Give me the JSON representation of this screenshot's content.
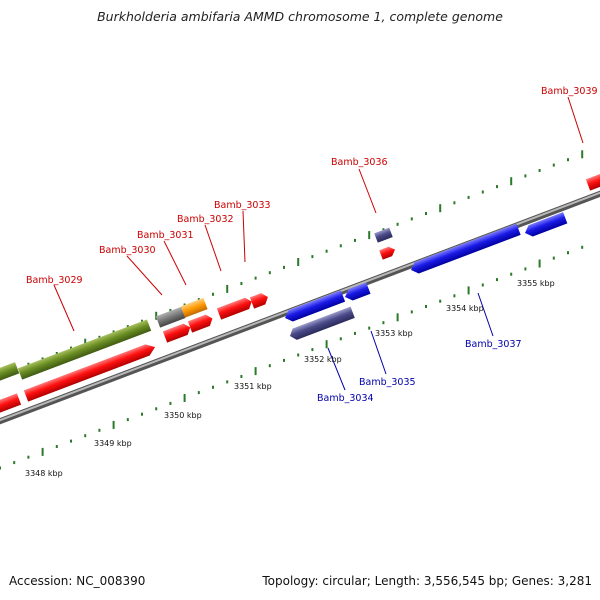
{
  "title": "Burkholderia ambifaria AMMD chromosome 1, complete genome",
  "footer": {
    "accession": "Accession: NC_008390",
    "summary": "Topology: circular; Length: 3,556,545 bp; Genes: 3,281"
  },
  "colors": {
    "backbone": "#8a8a8a",
    "tick": "#2a7a2a",
    "red": "#ee1111",
    "green": "#6b8e23",
    "blue": "#1a1ae6",
    "slate": "#4a4a8a",
    "gray": "#777777",
    "orange": "#ff9900"
  },
  "scale_labels": [
    "3348 kbp",
    "3349 kbp",
    "3350 kbp",
    "3351 kbp",
    "3352 kbp",
    "3353 kbp",
    "3354 kbp",
    "3355 kbp"
  ],
  "genes": [
    {
      "name": "Bamb_3029",
      "strand": "forward"
    },
    {
      "name": "Bamb_3030",
      "strand": "forward"
    },
    {
      "name": "Bamb_3031",
      "strand": "forward"
    },
    {
      "name": "Bamb_3032",
      "strand": "forward"
    },
    {
      "name": "Bamb_3033",
      "strand": "forward"
    },
    {
      "name": "Bamb_3036",
      "strand": "forward"
    },
    {
      "name": "Bamb_3039",
      "strand": "forward"
    },
    {
      "name": "Bamb_3034",
      "strand": "reverse"
    },
    {
      "name": "Bamb_3035",
      "strand": "reverse"
    },
    {
      "name": "Bamb_3037",
      "strand": "reverse"
    }
  ]
}
